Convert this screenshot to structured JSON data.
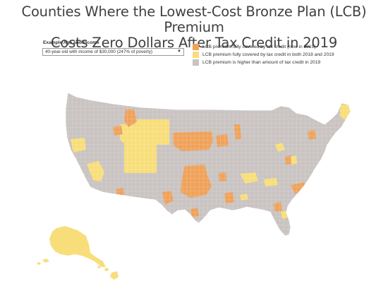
{
  "title": {
    "line1": "Counties Where the Lowest-Cost Bronze Plan (LCB) Premium",
    "line2": "Costs Zero Dollars After Tax Credit in 2019"
  },
  "filter": {
    "label": "Example Age and Income",
    "selected": "40-year-old with income of $30,000 (247% of poverty)",
    "caret": "▼"
  },
  "legend": [
    {
      "label": "LCB premium fully covered by tax credit (new in 2019)",
      "color": "#f0a25a"
    },
    {
      "label": "LCB premium fully covered by tax credit in both 2018 and 2019",
      "color": "#f8de7a"
    },
    {
      "label": "LCB premium is higher than amount of tax credit in 2019",
      "color": "#c9c3c1"
    }
  ],
  "map_colors": {
    "base": "#c9c3c1",
    "new_2019": "#f0a25a",
    "both_years": "#f8de7a",
    "border": "#ffffff"
  }
}
